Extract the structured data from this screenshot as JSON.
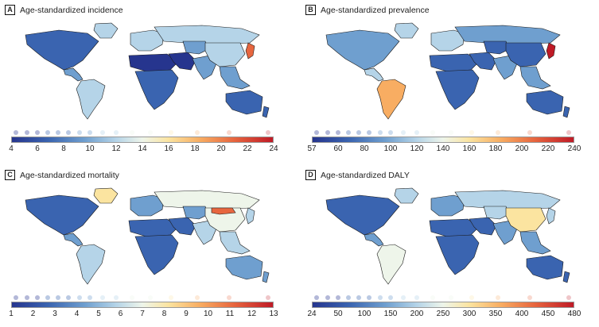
{
  "colors": {
    "ocean": "#ffffff",
    "border": "#1a1a1a",
    "scale": [
      "#26358e",
      "#3a64b0",
      "#6f9fcf",
      "#b5d4e8",
      "#eef5ea",
      "#fbe4a0",
      "#f8ad62",
      "#e7663f",
      "#bf1a26"
    ]
  },
  "panels": [
    {
      "letter": "A",
      "title": "Age-standardized incidence",
      "ticks": [
        "4",
        "6",
        "8",
        "10",
        "12",
        "14",
        "16",
        "18",
        "20",
        "22",
        "24"
      ],
      "regions": {
        "north_america": 1,
        "greenland": 3,
        "central_america": 2,
        "south_america": 3,
        "europe": 3,
        "russia": 3,
        "north_africa": 0,
        "subsaharan_africa": 1,
        "middle_east": 0,
        "central_asia": 2,
        "south_asia": 2,
        "china": 3,
        "southeast_asia": 2,
        "japan": 7,
        "australia": 1,
        "new_zealand": 1
      }
    },
    {
      "letter": "B",
      "title": "Age-standardized prevalence",
      "ticks": [
        "57",
        "60",
        "80",
        "100",
        "120",
        "140",
        "160",
        "180",
        "200",
        "220",
        "240"
      ],
      "regions": {
        "north_america": 2,
        "greenland": 3,
        "central_america": 3,
        "south_america": 6,
        "europe": 3,
        "russia": 2,
        "north_africa": 1,
        "subsaharan_africa": 1,
        "middle_east": 1,
        "central_asia": 1,
        "south_asia": 2,
        "china": 1,
        "southeast_asia": 2,
        "japan": 8,
        "australia": 1,
        "new_zealand": 1
      }
    },
    {
      "letter": "C",
      "title": "Age-standardized mortality",
      "ticks": [
        "1",
        "2",
        "3",
        "4",
        "5",
        "6",
        "7",
        "8",
        "9",
        "10",
        "11",
        "12",
        "13"
      ],
      "regions": {
        "north_america": 1,
        "greenland": 5,
        "central_america": 2,
        "south_america": 3,
        "europe": 2,
        "russia": 4,
        "north_africa": 1,
        "subsaharan_africa": 1,
        "middle_east": 1,
        "central_asia": 2,
        "south_asia": 3,
        "china": 4,
        "mongolia": 7,
        "southeast_asia": 3,
        "japan": 3,
        "australia": 2,
        "new_zealand": 2
      }
    },
    {
      "letter": "D",
      "title": "Age-standardized DALY",
      "ticks": [
        "24",
        "50",
        "100",
        "150",
        "200",
        "250",
        "300",
        "350",
        "400",
        "450",
        "480"
      ],
      "regions": {
        "north_america": 1,
        "greenland": 3,
        "central_america": 2,
        "south_america": 4,
        "europe": 2,
        "russia": 3,
        "north_africa": 1,
        "subsaharan_africa": 1,
        "middle_east": 1,
        "central_asia": 3,
        "south_asia": 2,
        "china": 5,
        "southeast_asia": 2,
        "japan": 3,
        "australia": 1,
        "new_zealand": 1
      }
    }
  ]
}
